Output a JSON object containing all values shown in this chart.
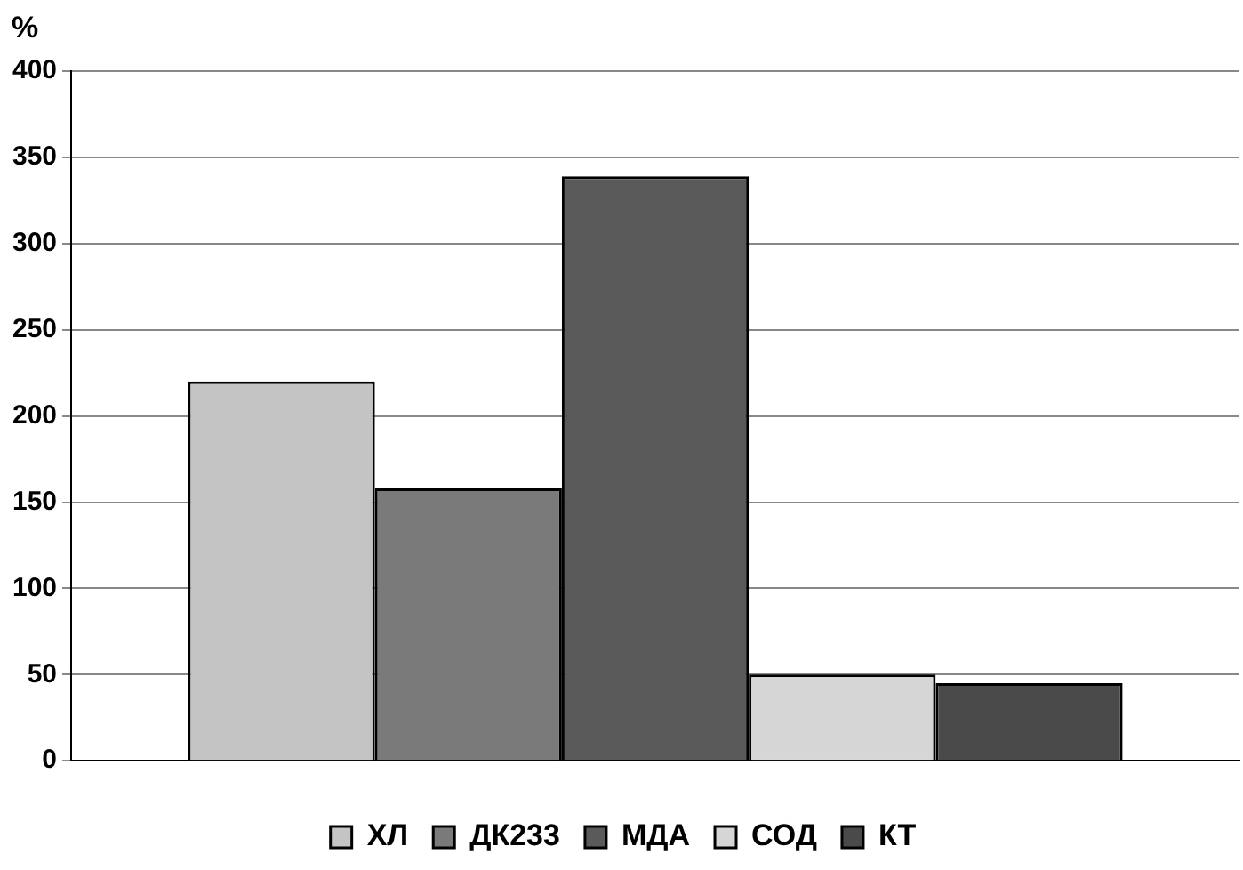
{
  "chart_data": {
    "type": "bar",
    "ylabel": "%",
    "categories": [
      null
    ],
    "series": [
      {
        "name": "ХЛ",
        "color": "#c4c4c4",
        "values": [
          220
        ]
      },
      {
        "name": "ДК233",
        "color": "#7a7a7a",
        "values": [
          158
        ]
      },
      {
        "name": "МДА",
        "color": "#5a5a5a",
        "values": [
          339
        ]
      },
      {
        "name": "СОД",
        "color": "#d6d6d6",
        "values": [
          50
        ]
      },
      {
        "name": "КТ",
        "color": "#4a4a4a",
        "values": [
          45
        ]
      }
    ],
    "ylim": [
      0,
      400
    ],
    "yticks": [
      0,
      50,
      100,
      150,
      200,
      250,
      300,
      350,
      400
    ],
    "grid": "y",
    "legend": "bottom"
  }
}
